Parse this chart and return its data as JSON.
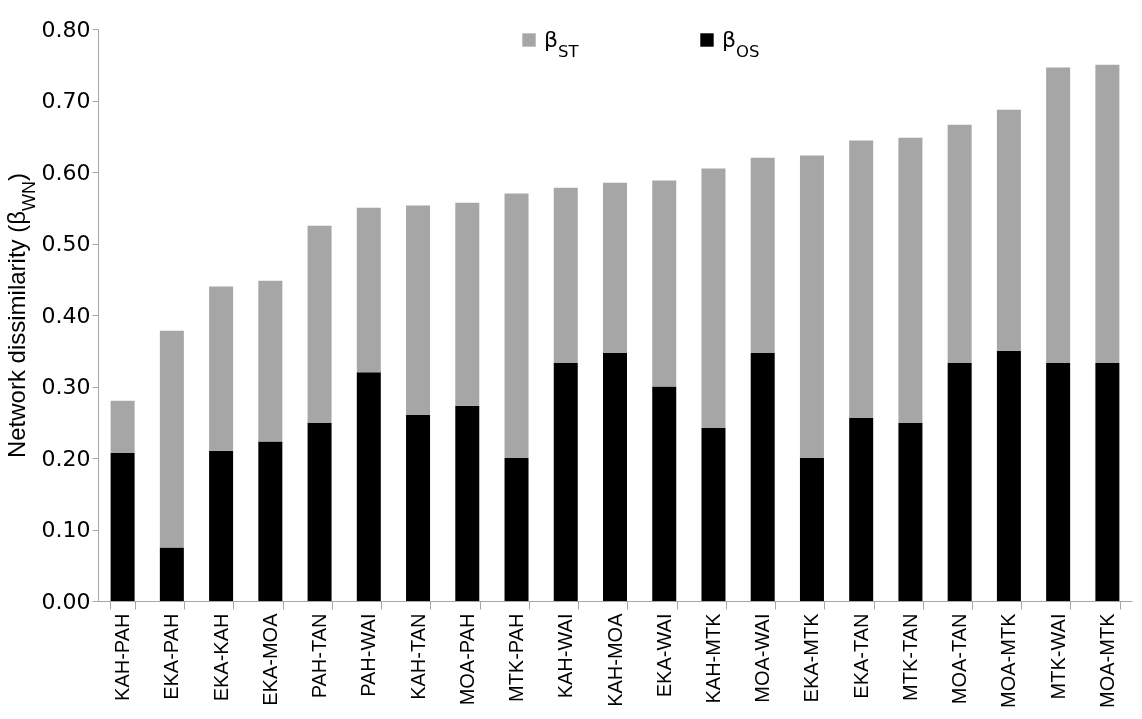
{
  "chart_data": {
    "type": "bar",
    "stacked": true,
    "ylabel": "Network dissimilarity (β$_{WN}$)",
    "legend": "top",
    "grid": false,
    "categories": [
      "KAH-PAH",
      "EKA-PAH",
      "EKA-KAH",
      "EKA-MOA",
      "PAH-TAN",
      "PAH-WAI",
      "KAH-TAN",
      "MOA-PAH",
      "MTK-PAH",
      "KAH-WAI",
      "KAH-MOA",
      "EKA-WAI",
      "KAH-MTK",
      "MOA-WAI",
      "EKA-MTK",
      "EKA-TAN",
      "MTK-TAN",
      "MOA-TAN",
      "MOA-MTK",
      "MTK-WAI",
      "MOA-MTK"
    ],
    "series": [
      {
        "name": "β$_{OS}$",
        "color": "#000000",
        "values": [
          0.207,
          0.075,
          0.21,
          0.223,
          0.249,
          0.32,
          0.26,
          0.273,
          0.2,
          0.333,
          0.347,
          0.3,
          0.242,
          0.347,
          0.2,
          0.256,
          0.249,
          0.333,
          0.35,
          0.333,
          0.333
        ]
      },
      {
        "name": "β$_{ST}$",
        "color": "#a6a6a6",
        "values": [
          0.073,
          0.303,
          0.23,
          0.225,
          0.276,
          0.23,
          0.293,
          0.284,
          0.37,
          0.245,
          0.238,
          0.288,
          0.363,
          0.273,
          0.423,
          0.388,
          0.399,
          0.333,
          0.337,
          0.413,
          0.417
        ]
      }
    ],
    "ylim": [
      0,
      0.8
    ],
    "yticks": [
      {
        "value": 0,
        "label": "0.00"
      },
      {
        "value": 0.1,
        "label": "0.10"
      },
      {
        "value": 0.2,
        "label": "0.20"
      },
      {
        "value": 0.3,
        "label": "0.30"
      },
      {
        "value": 0.4,
        "label": "0.40"
      },
      {
        "value": 0.5,
        "label": "0.50"
      },
      {
        "value": 0.6,
        "label": "0.60"
      },
      {
        "value": 0.7,
        "label": "0.70"
      },
      {
        "value": 0.8,
        "label": "0.80"
      }
    ]
  }
}
